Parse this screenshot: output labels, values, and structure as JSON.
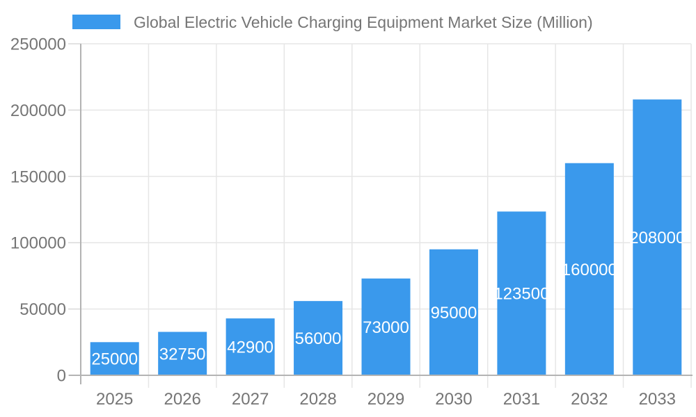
{
  "chart_data": {
    "type": "bar",
    "title": "Global Electric Vehicle Charging Equipment Market Size (Million)",
    "legend_position": "top-left",
    "categories": [
      "2025",
      "2026",
      "2027",
      "2028",
      "2029",
      "2030",
      "2031",
      "2032",
      "2033"
    ],
    "series": [
      {
        "name": "Global Electric Vehicle Charging Equipment Market Size (Million)",
        "color": "#3a99ec",
        "values": [
          25000,
          32750,
          42900,
          56000,
          73000,
          95000,
          123500,
          160000,
          208000
        ]
      }
    ],
    "value_labels": [
      "25000",
      "32750",
      "42900",
      "56000",
      "73000",
      "95000",
      "123500",
      "160000",
      "208000"
    ],
    "xlabel": "",
    "ylabel": "",
    "ylim": [
      0,
      250000
    ],
    "yticks": [
      0,
      50000,
      100000,
      150000,
      200000,
      250000
    ],
    "ytick_labels": [
      "0",
      "50000",
      "100000",
      "150000",
      "200000",
      "250000"
    ],
    "grid": "horizontal and vertical gridlines, ticks outside axes"
  },
  "colors": {
    "bar": "#3a99ec",
    "title_text": "#757575",
    "axis_text": "#757575",
    "value_text": "#ffffff",
    "gridline": "#e6e6e6",
    "tick": "#d9d9d9",
    "axis_line": "#b3b3b3",
    "background": "#ffffff"
  }
}
